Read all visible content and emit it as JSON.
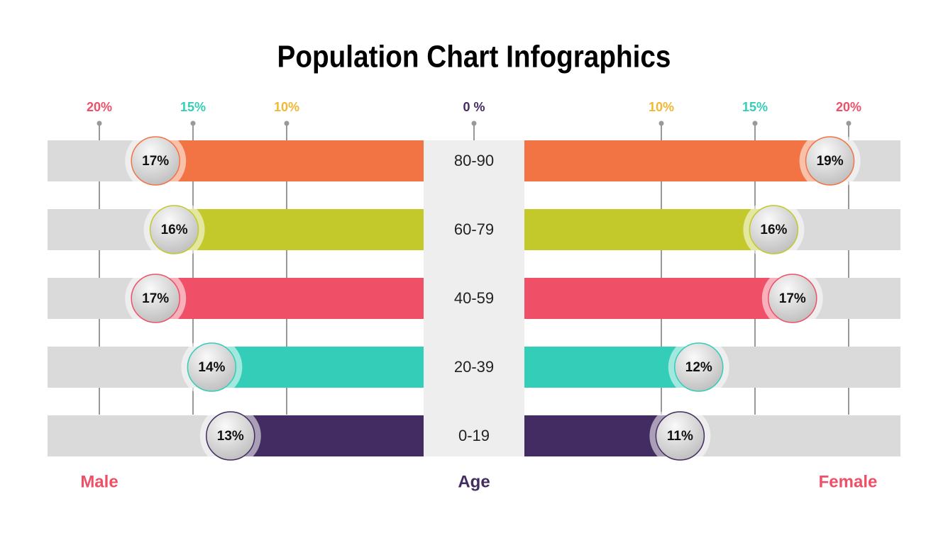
{
  "chart_data": {
    "type": "population_pyramid",
    "title": "Population Chart Infographics",
    "x_label": "Age",
    "categories": [
      "80-90",
      "60-79",
      "40-59",
      "20-39",
      "0-19"
    ],
    "colors": [
      "#f27444",
      "#c3c92a",
      "#ef5068",
      "#33cdb8",
      "#422c61"
    ],
    "series": [
      {
        "name": "Male",
        "color": "#ef5068",
        "values": [
          17,
          16,
          17,
          14,
          13
        ],
        "value_labels": [
          "17%",
          "16%",
          "17%",
          "14%",
          "13%"
        ]
      },
      {
        "name": "Female",
        "color": "#ef5068",
        "values": [
          19,
          16,
          17,
          12,
          11
        ],
        "value_labels": [
          "19%",
          "16%",
          "17%",
          "12%",
          "11%"
        ]
      }
    ],
    "xlim": [
      0,
      20
    ],
    "male_xticks": [
      {
        "value": 20,
        "label": "20%"
      },
      {
        "value": 15,
        "label": "15%"
      },
      {
        "value": 10,
        "label": "10%"
      }
    ],
    "center_xtick": {
      "value": 0,
      "label": "0 %"
    },
    "female_xticks": [
      {
        "value": 10,
        "label": "10%"
      },
      {
        "value": 15,
        "label": "15%"
      },
      {
        "value": 20,
        "label": "20%"
      }
    ],
    "tick_colors": {
      "0": "#422c61",
      "10": "#f2b833",
      "15": "#33cdb8",
      "20": "#ef5068"
    },
    "grid": true
  }
}
